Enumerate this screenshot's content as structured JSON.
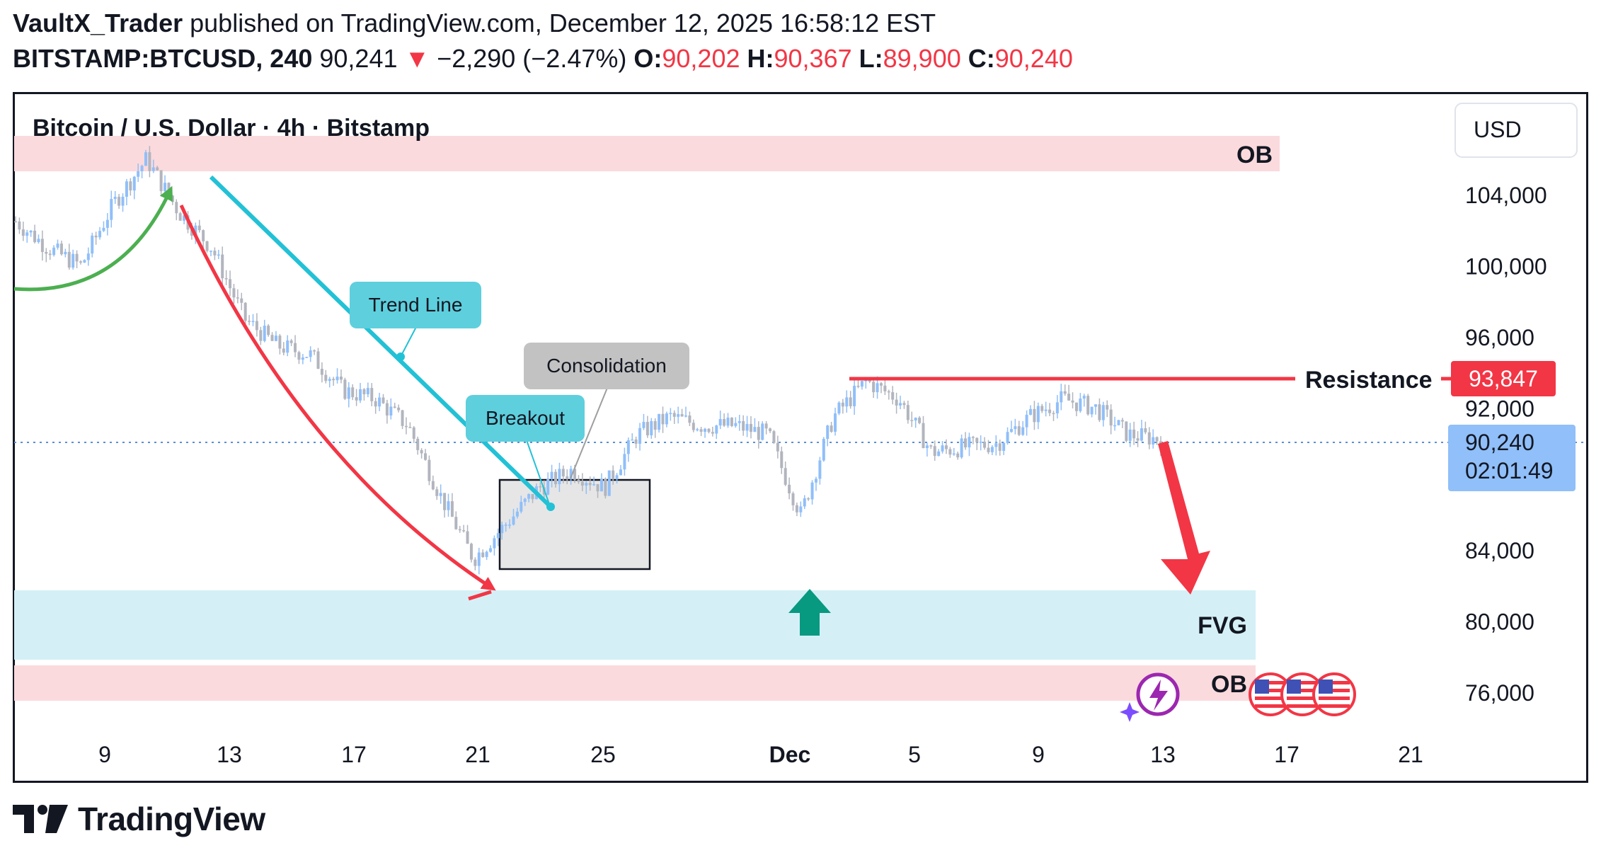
{
  "header": {
    "author": "VaultX_Trader",
    "published": "published on TradingView.com, December 12, 2025 16:58:12 EST",
    "symbol": "BITSTAMP:BTCUSD, 240",
    "last": "90,241",
    "change": "−2,290 (−2.47%)",
    "o_label": "O:",
    "o": "90,202",
    "h_label": "H:",
    "h": "90,367",
    "l_label": "L:",
    "l": "89,900",
    "c_label": "C:",
    "c": "90,240",
    "down_arrow": "▼"
  },
  "chart": {
    "title": "Bitcoin / U.S. Dollar · 4h · Bitstamp",
    "currency_button": "USD",
    "resistance_label": "Resistance",
    "resistance_tag": "93,847",
    "price_tag": "90,240",
    "countdown": "02:01:49",
    "ob_top_label": "OB",
    "ob_bottom_label": "OB",
    "fvg_label": "FVG",
    "callouts": {
      "trend_line": "Trend Line",
      "consolidation": "Consolidation",
      "breakout": "Breakout"
    },
    "colors": {
      "bull": "#90bff9",
      "bear": "#b2b5be",
      "resistance": "#f23645",
      "trendline": "#22c1d6",
      "green_arc": "#4caf50",
      "red_arc": "#f23645",
      "ob_zone": "#fbdadd",
      "fvg_zone": "#d4f0f6",
      "price_tag_bg": "#90bff9",
      "up_arrow": "#089981"
    }
  },
  "chart_data": {
    "type": "candlestick",
    "title": "Bitcoin / U.S. Dollar · 4h · Bitstamp",
    "x_ticks": [
      "9",
      "13",
      "17",
      "21",
      "25",
      "Dec",
      "5",
      "9",
      "13",
      "17",
      "21"
    ],
    "y_ticks": [
      "104,000",
      "100,000",
      "96,000",
      "92,000",
      "84,000",
      "80,000",
      "76,000"
    ],
    "y_range": [
      74000,
      106500
    ],
    "close_path": [
      [
        "Nov 7",
        102500
      ],
      [
        "Nov 8",
        101000
      ],
      [
        "Nov 9",
        100000
      ],
      [
        "Nov 10",
        103500
      ],
      [
        "Nov 11",
        106000
      ],
      [
        "Nov 12",
        103000
      ],
      [
        "Nov 13",
        101000
      ],
      [
        "Nov 14",
        97000
      ],
      [
        "Nov 15",
        95500
      ],
      [
        "Nov 16",
        95000
      ],
      [
        "Nov 17",
        93000
      ],
      [
        "Nov 18",
        92500
      ],
      [
        "Nov 19",
        91000
      ],
      [
        "Nov 20",
        87000
      ],
      [
        "Nov 21",
        83500
      ],
      [
        "Nov 22",
        85500
      ],
      [
        "Nov 23",
        87500
      ],
      [
        "Nov 24",
        88500
      ],
      [
        "Nov 25",
        87500
      ],
      [
        "Nov 26",
        90500
      ],
      [
        "Nov 27",
        91500
      ],
      [
        "Nov 28",
        91000
      ],
      [
        "Nov 29",
        91000
      ],
      [
        "Nov 30",
        90500
      ],
      [
        "Dec 1",
        86000
      ],
      [
        "Dec 2",
        91500
      ],
      [
        "Dec 3",
        93500
      ],
      [
        "Dec 4",
        92500
      ],
      [
        "Dec 5",
        89500
      ],
      [
        "Dec 6",
        89800
      ],
      [
        "Dec 7",
        90000
      ],
      [
        "Dec 8",
        91500
      ],
      [
        "Dec 9",
        92500
      ],
      [
        "Dec 10",
        92000
      ],
      [
        "Dec 11",
        90500
      ],
      [
        "Dec 12",
        90240
      ]
    ],
    "zones": [
      {
        "label": "OB",
        "from": 104700,
        "to": 106700
      },
      {
        "label": "FVG",
        "from": 78000,
        "to": 82000
      },
      {
        "label": "OB",
        "from": 75600,
        "to": 77700
      }
    ],
    "resistance": 93847,
    "last_price": 90240
  }
}
